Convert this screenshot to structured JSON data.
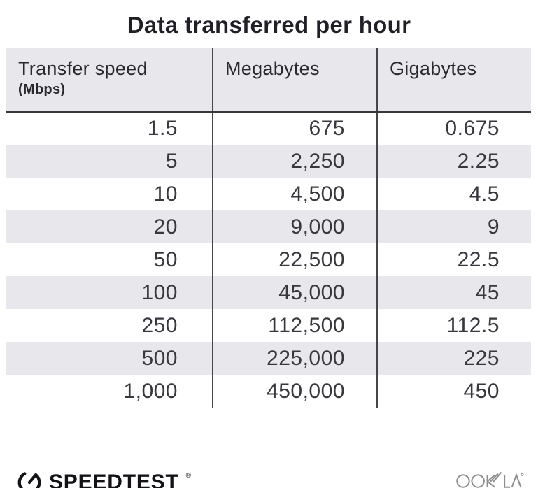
{
  "title": "Data transferred per hour",
  "table": {
    "columns": [
      {
        "label": "Transfer speed",
        "sublabel": "(Mbps)"
      },
      {
        "label": "Megabytes"
      },
      {
        "label": "Gigabytes"
      }
    ],
    "rows": [
      [
        "1.5",
        "675",
        "0.675"
      ],
      [
        "5",
        "2,250",
        "2.25"
      ],
      [
        "10",
        "4,500",
        "4.5"
      ],
      [
        "20",
        "9,000",
        "9"
      ],
      [
        "50",
        "22,500",
        "22.5"
      ],
      [
        "100",
        "45,000",
        "45"
      ],
      [
        "250",
        "112,500",
        "112.5"
      ],
      [
        "500",
        "225,000",
        "225"
      ],
      [
        "1,000",
        "450,000",
        "450"
      ]
    ]
  },
  "footer": {
    "brand": "SPEEDTEST",
    "brand_mark": "®",
    "attribution": "OOKLA",
    "attribution_mark": "®"
  },
  "colors": {
    "stripe": "#e8e7eb",
    "header_bg": "#e8e7eb",
    "divider": "#47444a",
    "header_underline": "#38353b",
    "number_text": "#39363d",
    "title_text": "#211f26",
    "ookla_gray": "#8d8d8d",
    "speedtest_black": "#141217"
  },
  "chart_data": {
    "type": "table",
    "title": "Data transferred per hour",
    "columns": [
      "Transfer speed (Mbps)",
      "Megabytes",
      "Gigabytes"
    ],
    "rows": [
      [
        1.5,
        675,
        0.675
      ],
      [
        5,
        2250,
        2.25
      ],
      [
        10,
        4500,
        4.5
      ],
      [
        20,
        9000,
        9
      ],
      [
        50,
        22500,
        22.5
      ],
      [
        100,
        45000,
        45
      ],
      [
        250,
        112500,
        112.5
      ],
      [
        500,
        225000,
        225
      ],
      [
        1000,
        450000,
        450
      ]
    ],
    "layout": {
      "striped_rows": true,
      "legend": "none",
      "grid": "column-dividers"
    }
  }
}
